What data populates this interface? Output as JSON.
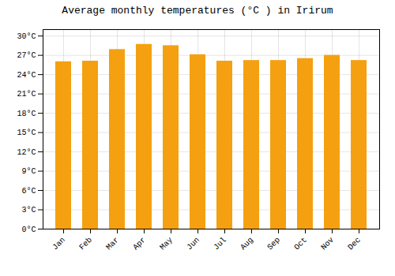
{
  "chart_data": {
    "type": "bar",
    "title": "Average monthly temperatures (°C ) in Irirum",
    "categories": [
      "Jan",
      "Feb",
      "Mar",
      "Apr",
      "May",
      "Jun",
      "Jul",
      "Aug",
      "Sep",
      "Oct",
      "Nov",
      "Dec"
    ],
    "values": [
      26.0,
      26.1,
      27.9,
      28.7,
      28.5,
      27.1,
      26.1,
      26.2,
      26.2,
      26.5,
      27.0,
      26.2
    ],
    "color": "#F5A010",
    "ylim": [
      0,
      31
    ],
    "yticks": [
      {
        "value": 0,
        "label": "0°C"
      },
      {
        "value": 3,
        "label": "3°C"
      },
      {
        "value": 6,
        "label": "6°C"
      },
      {
        "value": 9,
        "label": "9°C"
      },
      {
        "value": 12,
        "label": "12°C"
      },
      {
        "value": 15,
        "label": "15°C"
      },
      {
        "value": 18,
        "label": "18°C"
      },
      {
        "value": 21,
        "label": "21°C"
      },
      {
        "value": 24,
        "label": "24°C"
      },
      {
        "value": 27,
        "label": "27°C"
      },
      {
        "value": 30,
        "label": "30°C"
      }
    ],
    "grid": true
  }
}
